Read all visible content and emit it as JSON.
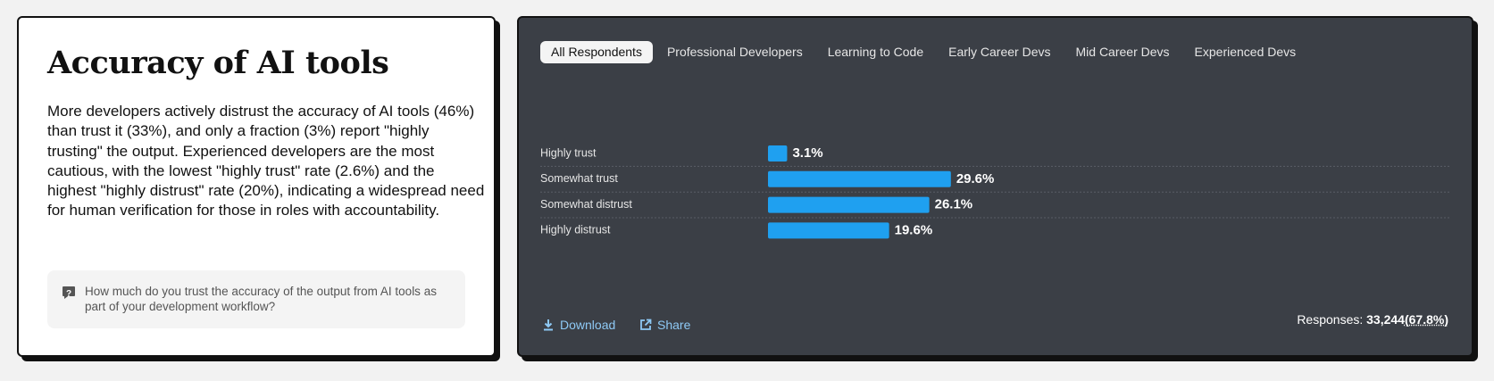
{
  "card": {
    "title": "Accuracy of AI tools",
    "body": "More developers actively distrust the accuracy of AI tools (46%) than trust it (33%), and only a fraction (3%) report \"highly trusting\" the output. Experienced developers are the most cautious, with the lowest \"highly trust\" rate (2.6%) and the highest \"highly distrust\" rate (20%), indicating a widespread need for human verification for those in roles with accountability.",
    "question": "How much do you trust the accuracy of the output from AI tools as part of your development workflow?"
  },
  "tabs": [
    "All Respondents",
    "Professional Developers",
    "Learning to Code",
    "Early Career Devs",
    "Mid Career Devs",
    "Experienced Devs"
  ],
  "chart_data": {
    "type": "bar",
    "orientation": "horizontal",
    "categories": [
      "Highly trust",
      "Somewhat trust",
      "Somewhat distrust",
      "Highly distrust"
    ],
    "values": [
      3.1,
      29.6,
      26.1,
      19.6
    ],
    "value_labels": [
      "3.1%",
      "29.6%",
      "26.1%",
      "19.6%"
    ],
    "color": "#1fa0f0"
  },
  "footer": {
    "download": "Download",
    "share": "Share",
    "responses_label": "Responses:",
    "responses_count": "33,244",
    "responses_pct": "(67.8%)"
  }
}
